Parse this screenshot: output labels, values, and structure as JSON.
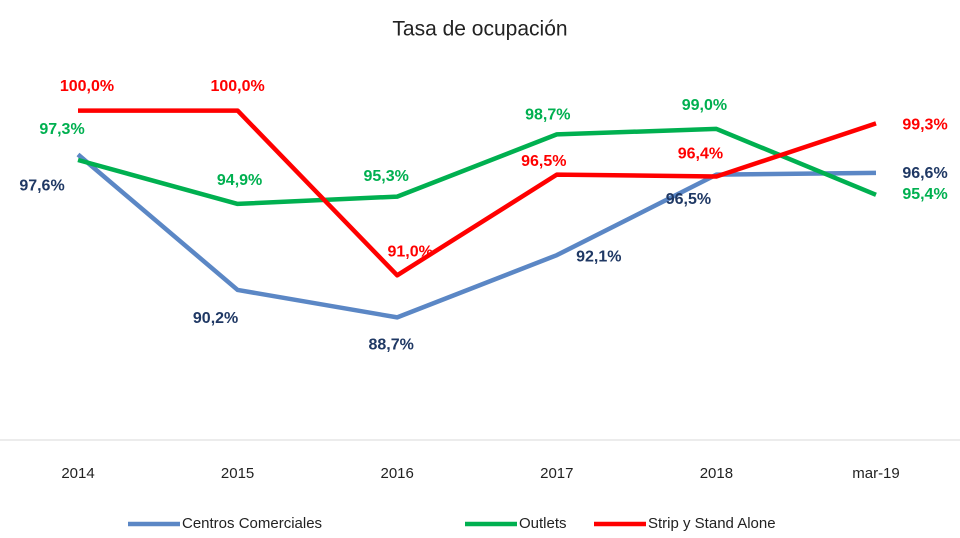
{
  "chart_data": {
    "type": "line",
    "title": "Tasa de ocupación",
    "categories": [
      "2014",
      "2015",
      "2016",
      "2017",
      "2018",
      "mar-19"
    ],
    "ylim": [
      82,
      102
    ],
    "series": [
      {
        "name": "Centros Comerciales",
        "color": "#5b87c5",
        "label_color": "#1f3864",
        "values": [
          97.6,
          90.2,
          88.7,
          92.1,
          96.5,
          96.6
        ],
        "value_labels": [
          "97,6%",
          "90,2%",
          "88,7%",
          "92,1%",
          "96,5%",
          "96,6%"
        ]
      },
      {
        "name": "Outlets",
        "color": "#00b050",
        "label_color": "#00b050",
        "values": [
          97.3,
          94.9,
          95.3,
          98.7,
          99.0,
          95.4
        ],
        "value_labels": [
          "97,3%",
          "94,9%",
          "95,3%",
          "98,7%",
          "99,0%",
          "95,4%"
        ]
      },
      {
        "name": "Strip y Stand Alone",
        "color": "#ff0000",
        "label_color": "#ff0000",
        "values": [
          100.0,
          100.0,
          91.0,
          96.5,
          96.4,
          99.3
        ],
        "value_labels": [
          "100,0%",
          "100,0%",
          "91,0%",
          "96,5%",
          "96,4%",
          "99,3%"
        ]
      }
    ]
  }
}
